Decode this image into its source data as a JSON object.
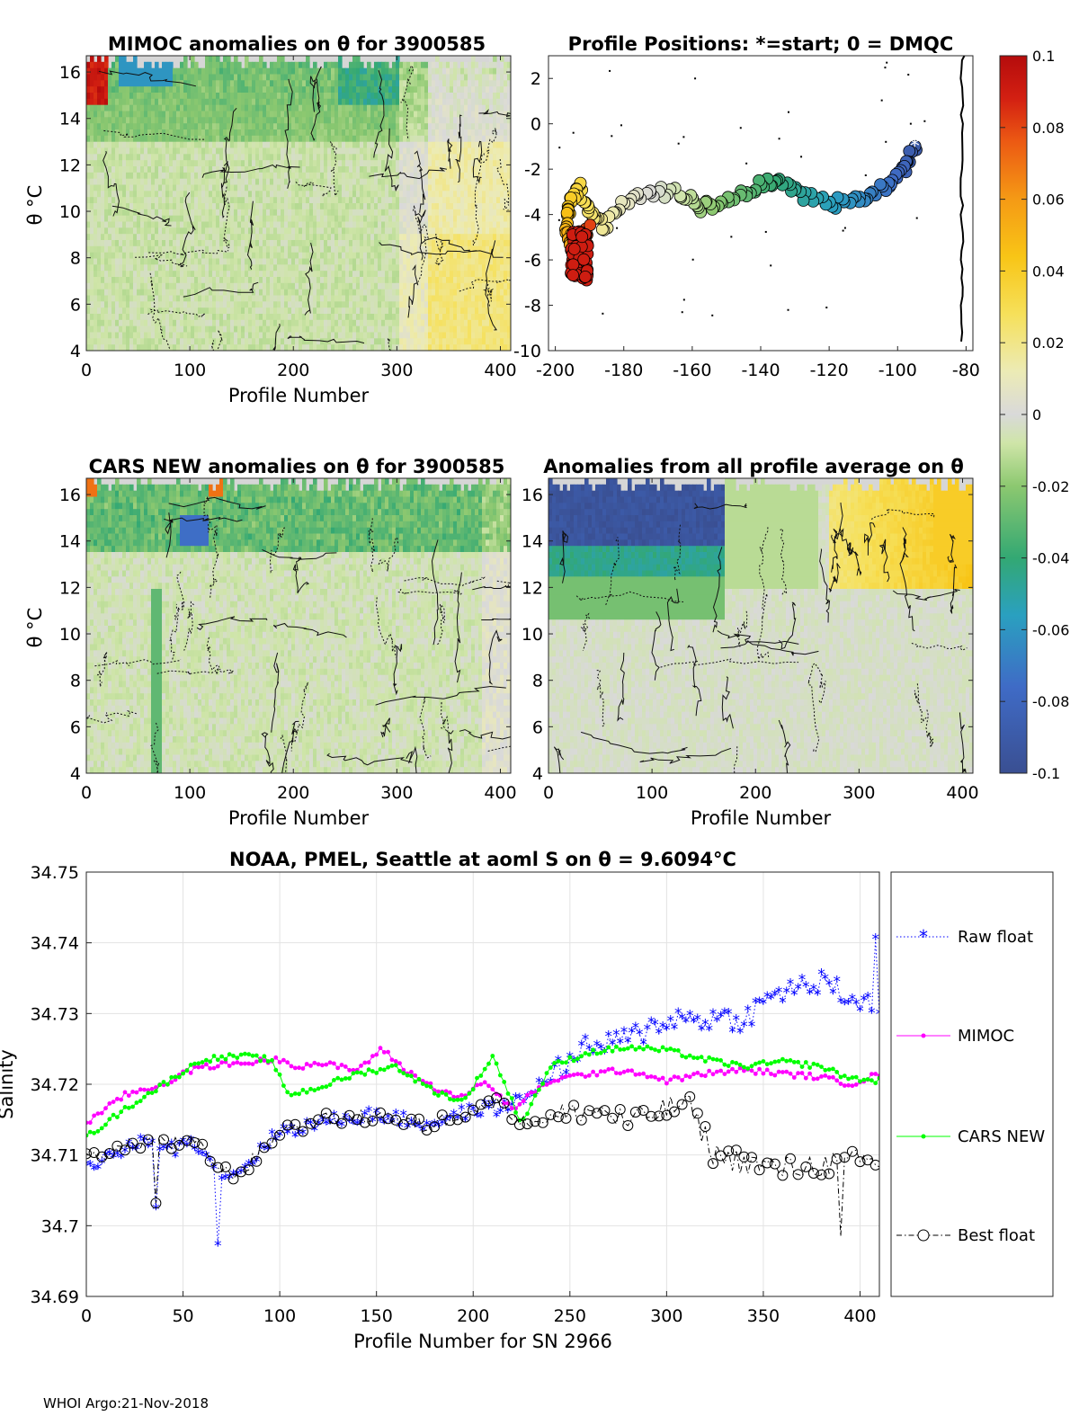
{
  "footer": "WHOI Argo:21-Nov-2018",
  "panels": {
    "mimoc": {
      "title": "MIMOC anomalies on θ  for 3900585",
      "xlabel": "Profile Number",
      "ylabel": "θ °C"
    },
    "positions": {
      "title": "Profile Positions: *=start; 0 = DMQC"
    },
    "cars": {
      "title": "CARS NEW anomalies on θ for 3900585",
      "xlabel": "Profile Number",
      "ylabel": "θ °C"
    },
    "allavg": {
      "title": "Anomalies from all profile average on θ",
      "xlabel": "Profile Number"
    }
  },
  "colorbar": {
    "ticks": [
      "0.1",
      "0.08",
      "0.06",
      "0.04",
      "0.02",
      "0",
      "-0.02",
      "-0.04",
      "-0.06",
      "-0.08",
      "-0.1"
    ],
    "range": [
      -0.1,
      0.1
    ]
  },
  "chart_data": [
    {
      "type": "heatmap",
      "title": "MIMOC anomalies on θ  for 3900585",
      "xlabel": "Profile Number",
      "ylabel": "θ °C",
      "xlim": [
        0,
        410
      ],
      "ylim": [
        4,
        16.7
      ],
      "xticks": [
        "0",
        "100",
        "200",
        "300",
        "400"
      ],
      "yticks": [
        "4",
        "6",
        "8",
        "10",
        "12",
        "14",
        "16"
      ]
    },
    {
      "type": "scatter",
      "title": "Profile Positions: *=start; 0 = DMQC",
      "xlim": [
        -202,
        -78
      ],
      "ylim": [
        -10,
        3
      ],
      "xticks": [
        "-200",
        "-180",
        "-160",
        "-140",
        "-120",
        "-100",
        "-80"
      ],
      "yticks": [
        "-10",
        "-8",
        "-6",
        "-4",
        "-2",
        "0",
        "2"
      ],
      "track": [
        [
          -95,
          -1
        ],
        [
          -98,
          -2
        ],
        [
          -103,
          -2.7
        ],
        [
          -110,
          -3.3
        ],
        [
          -118,
          -3.5
        ],
        [
          -128,
          -3.2
        ],
        [
          -135,
          -2.5
        ],
        [
          -142,
          -2.8
        ],
        [
          -150,
          -3.3
        ],
        [
          -157,
          -3.7
        ],
        [
          -163,
          -3.1
        ],
        [
          -172,
          -3.0
        ],
        [
          -180,
          -3.4
        ],
        [
          -186,
          -4.5
        ],
        [
          -190,
          -3.8
        ],
        [
          -193,
          -2.8
        ],
        [
          -196,
          -3.5
        ],
        [
          -197,
          -4.5
        ],
        [
          -195,
          -5.5
        ],
        [
          -194,
          -6.3
        ],
        [
          -192,
          -5.3
        ],
        [
          -190,
          -4.6
        ]
      ]
    },
    {
      "type": "heatmap",
      "title": "CARS NEW anomalies on θ for 3900585",
      "xlabel": "Profile Number",
      "ylabel": "θ °C",
      "xlim": [
        0,
        410
      ],
      "ylim": [
        4,
        16.7
      ],
      "xticks": [
        "0",
        "100",
        "200",
        "300",
        "400"
      ],
      "yticks": [
        "4",
        "6",
        "8",
        "10",
        "12",
        "14",
        "16"
      ]
    },
    {
      "type": "heatmap",
      "title": "Anomalies from all profile average on θ",
      "xlabel": "Profile Number",
      "xlim": [
        0,
        410
      ],
      "ylim": [
        4,
        16.7
      ],
      "xticks": [
        "0",
        "100",
        "200",
        "300",
        "400"
      ],
      "yticks": [
        "4",
        "6",
        "8",
        "10",
        "12",
        "14",
        "16"
      ]
    },
    {
      "type": "line",
      "title": "NOAA, PMEL, Seattle at aoml S on θ = 9.6094°C",
      "xlabel": "Profile Number for SN 2966",
      "ylabel": "Salinity",
      "xlim": [
        0,
        410
      ],
      "ylim": [
        34.69,
        34.75
      ],
      "xticks": [
        "0",
        "50",
        "100",
        "150",
        "200",
        "250",
        "300",
        "350",
        "400"
      ],
      "yticks": [
        "34.69",
        "34.7",
        "34.71",
        "34.72",
        "34.73",
        "34.74",
        "34.75"
      ],
      "series": [
        {
          "name": "Raw float",
          "color": "#0000ff",
          "style": "dotted-star",
          "knots": [
            [
              0,
              34.708
            ],
            [
              20,
              34.7105
            ],
            [
              35,
              34.712
            ],
            [
              45,
              34.7105
            ],
            [
              55,
              34.712
            ],
            [
              62,
              34.71
            ],
            [
              70,
              34.707
            ],
            [
              80,
              34.7075
            ],
            [
              92,
              34.711
            ],
            [
              100,
              34.713
            ],
            [
              125,
              34.7145
            ],
            [
              150,
              34.7155
            ],
            [
              175,
              34.714
            ],
            [
              200,
              34.716
            ],
            [
              215,
              34.7165
            ],
            [
              225,
              34.7175
            ],
            [
              240,
              34.721
            ],
            [
              260,
              34.725
            ],
            [
              280,
              34.726
            ],
            [
              300,
              34.729
            ],
            [
              320,
              34.729
            ],
            [
              340,
              34.729
            ],
            [
              360,
              34.733
            ],
            [
              380,
              34.734
            ],
            [
              395,
              34.732
            ],
            [
              410,
              34.73
            ]
          ]
        },
        {
          "name": "MIMOC",
          "color": "#ff00ff",
          "style": "solid-dot",
          "knots": [
            [
              0,
              34.7145
            ],
            [
              20,
              34.7185
            ],
            [
              40,
              34.72
            ],
            [
              50,
              34.7215
            ],
            [
              60,
              34.7225
            ],
            [
              80,
              34.723
            ],
            [
              100,
              34.7235
            ],
            [
              110,
              34.7225
            ],
            [
              120,
              34.723
            ],
            [
              140,
              34.722
            ],
            [
              153,
              34.725
            ],
            [
              165,
              34.722
            ],
            [
              180,
              34.7195
            ],
            [
              195,
              34.718
            ],
            [
              205,
              34.7205
            ],
            [
              220,
              34.7165
            ],
            [
              240,
              34.7205
            ],
            [
              260,
              34.7215
            ],
            [
              280,
              34.722
            ],
            [
              300,
              34.7205
            ],
            [
              320,
              34.7215
            ],
            [
              340,
              34.722
            ],
            [
              360,
              34.7215
            ],
            [
              380,
              34.721
            ],
            [
              395,
              34.72
            ],
            [
              410,
              34.7215
            ]
          ]
        },
        {
          "name": "CARS NEW",
          "color": "#00ff00",
          "style": "solid-dot",
          "knots": [
            [
              0,
              34.7125
            ],
            [
              20,
              34.7165
            ],
            [
              40,
              34.72
            ],
            [
              60,
              34.7235
            ],
            [
              80,
              34.724
            ],
            [
              95,
              34.7235
            ],
            [
              105,
              34.7185
            ],
            [
              120,
              34.7195
            ],
            [
              140,
              34.7215
            ],
            [
              160,
              34.7225
            ],
            [
              180,
              34.719
            ],
            [
              195,
              34.7175
            ],
            [
              210,
              34.724
            ],
            [
              225,
              34.7145
            ],
            [
              240,
              34.7225
            ],
            [
              260,
              34.7245
            ],
            [
              280,
              34.7252
            ],
            [
              300,
              34.7248
            ],
            [
              320,
              34.7235
            ],
            [
              340,
              34.7225
            ],
            [
              360,
              34.7232
            ],
            [
              380,
              34.7225
            ],
            [
              395,
              34.7208
            ],
            [
              410,
              34.7205
            ]
          ]
        },
        {
          "name": "Best float",
          "color": "#000000",
          "style": "dashdot-circle",
          "knots": [
            [
              0,
              34.7095
            ],
            [
              20,
              34.711
            ],
            [
              35,
              34.7125
            ],
            [
              45,
              34.7115
            ],
            [
              55,
              34.712
            ],
            [
              62,
              34.7105
            ],
            [
              70,
              34.7075
            ],
            [
              80,
              34.7075
            ],
            [
              92,
              34.711
            ],
            [
              100,
              34.7135
            ],
            [
              125,
              34.715
            ],
            [
              150,
              34.7155
            ],
            [
              175,
              34.714
            ],
            [
              200,
              34.7165
            ],
            [
              215,
              34.7175
            ],
            [
              225,
              34.7145
            ],
            [
              245,
              34.7155
            ],
            [
              265,
              34.7165
            ],
            [
              280,
              34.7145
            ],
            [
              295,
              34.716
            ],
            [
              310,
              34.7175
            ],
            [
              325,
              34.71
            ],
            [
              340,
              34.709
            ],
            [
              360,
              34.708
            ],
            [
              375,
              34.7085
            ],
            [
              390,
              34.709
            ],
            [
              410,
              34.709
            ]
          ]
        }
      ]
    }
  ]
}
